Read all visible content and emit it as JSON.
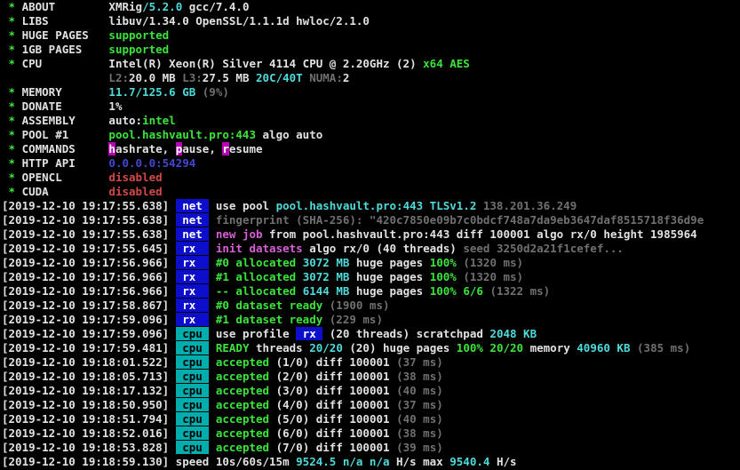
{
  "terminal": {
    "app": "XMRig miner console",
    "colors": {
      "bg": "#000000",
      "white": "#e2e2e2",
      "green": "#3ce43c",
      "cyan": "#4fdbdb",
      "dim": "#707070",
      "red": "#d24848",
      "magenta": "#d65fd6",
      "blue": "#4646d2",
      "hotkey_bg": "#b800b8",
      "tag_blue_bg": "#0d0dcc",
      "tag_cyan_bg": "#00adad"
    },
    "lines": [
      {
        "segments": [
          {
            "t": " * ",
            "s": "g",
            "n": "bullet"
          },
          {
            "t": "ABOUT        ",
            "s": "w",
            "n": "field-label"
          },
          {
            "t": "XMRig",
            "s": "w"
          },
          {
            "t": "/5.2.0",
            "s": "c"
          },
          {
            "t": " gcc/7.4.0",
            "s": "w"
          }
        ]
      },
      {
        "segments": [
          {
            "t": " * ",
            "s": "g",
            "n": "bullet"
          },
          {
            "t": "LIBS         ",
            "s": "w",
            "n": "field-label"
          },
          {
            "t": "libuv/1.34.0 OpenSSL/1.1.1d hwloc/2.1.0",
            "s": "w"
          }
        ]
      },
      {
        "segments": [
          {
            "t": " * ",
            "s": "g",
            "n": "bullet"
          },
          {
            "t": "HUGE PAGES   ",
            "s": "w",
            "n": "field-label"
          },
          {
            "t": "supported",
            "s": "g"
          }
        ]
      },
      {
        "segments": [
          {
            "t": " * ",
            "s": "g",
            "n": "bullet"
          },
          {
            "t": "1GB PAGES    ",
            "s": "w",
            "n": "field-label"
          },
          {
            "t": "supported",
            "s": "g"
          }
        ]
      },
      {
        "segments": [
          {
            "t": " * ",
            "s": "g",
            "n": "bullet"
          },
          {
            "t": "CPU          ",
            "s": "w",
            "n": "field-label"
          },
          {
            "t": "Intel(R) Xeon(R) Silver 4114 CPU @ 2.20GHz (2) ",
            "s": "w"
          },
          {
            "t": "x64 AES",
            "s": "g"
          }
        ]
      },
      {
        "segments": [
          {
            "t": "                ",
            "s": "w"
          },
          {
            "t": "L2:",
            "s": "d"
          },
          {
            "t": "20.0 MB ",
            "s": "w"
          },
          {
            "t": "L3:",
            "s": "d"
          },
          {
            "t": "27.5 MB ",
            "s": "w"
          },
          {
            "t": "20C/40T ",
            "s": "c"
          },
          {
            "t": "NUMA:",
            "s": "d"
          },
          {
            "t": "2",
            "s": "w"
          }
        ]
      },
      {
        "segments": [
          {
            "t": " * ",
            "s": "g",
            "n": "bullet"
          },
          {
            "t": "MEMORY       ",
            "s": "w",
            "n": "field-label"
          },
          {
            "t": "11.7/125.6 GB ",
            "s": "c"
          },
          {
            "t": "(9%)",
            "s": "d"
          }
        ]
      },
      {
        "segments": [
          {
            "t": " * ",
            "s": "g",
            "n": "bullet"
          },
          {
            "t": "DONATE       ",
            "s": "w",
            "n": "field-label"
          },
          {
            "t": "1%",
            "s": "w"
          }
        ]
      },
      {
        "segments": [
          {
            "t": " * ",
            "s": "g",
            "n": "bullet"
          },
          {
            "t": "ASSEMBLY     ",
            "s": "w",
            "n": "field-label"
          },
          {
            "t": "auto:",
            "s": "w"
          },
          {
            "t": "intel",
            "s": "g"
          }
        ]
      },
      {
        "segments": [
          {
            "t": " * ",
            "s": "g",
            "n": "bullet"
          },
          {
            "t": "POOL #1      ",
            "s": "w",
            "n": "field-label"
          },
          {
            "t": "pool.hashvault.pro:443",
            "s": "g"
          },
          {
            "t": " algo auto",
            "s": "w"
          }
        ]
      },
      {
        "segments": [
          {
            "t": " * ",
            "s": "g",
            "n": "bullet"
          },
          {
            "t": "COMMANDS     ",
            "s": "w",
            "n": "field-label"
          },
          {
            "t": "h",
            "s": "hk",
            "n": "hotkey"
          },
          {
            "t": "ashrate, ",
            "s": "w"
          },
          {
            "t": "p",
            "s": "hk",
            "n": "hotkey"
          },
          {
            "t": "ause, ",
            "s": "w"
          },
          {
            "t": "r",
            "s": "hk",
            "n": "hotkey"
          },
          {
            "t": "esume",
            "s": "w"
          }
        ]
      },
      {
        "segments": [
          {
            "t": " * ",
            "s": "g",
            "n": "bullet"
          },
          {
            "t": "HTTP API     ",
            "s": "w",
            "n": "field-label"
          },
          {
            "t": "0.0.0.0:54294",
            "s": "b"
          }
        ]
      },
      {
        "segments": [
          {
            "t": " * ",
            "s": "g",
            "n": "bullet"
          },
          {
            "t": "OPENCL       ",
            "s": "w",
            "n": "field-label"
          },
          {
            "t": "disabled",
            "s": "r"
          }
        ]
      },
      {
        "segments": [
          {
            "t": " * ",
            "s": "g",
            "n": "bullet"
          },
          {
            "t": "CUDA         ",
            "s": "w",
            "n": "field-label"
          },
          {
            "t": "disabled",
            "s": "r"
          }
        ]
      },
      {
        "segments": [
          {
            "t": "[2019-12-10 19:17:55.638] ",
            "s": "w",
            "n": "timestamp"
          },
          {
            "t": " net ",
            "s": "tagblue",
            "n": "net-tag"
          },
          {
            "t": " ",
            "s": "w"
          },
          {
            "t": "use pool ",
            "s": "w"
          },
          {
            "t": "pool.hashvault.pro:443 TLSv1.2 ",
            "s": "c"
          },
          {
            "t": "138.201.36.249",
            "s": "d"
          }
        ]
      },
      {
        "segments": [
          {
            "t": "[2019-12-10 19:17:55.638] ",
            "s": "w",
            "n": "timestamp"
          },
          {
            "t": " net ",
            "s": "tagblue",
            "n": "net-tag"
          },
          {
            "t": " ",
            "s": "w"
          },
          {
            "t": "fingerprint (SHA-256): \"420c7850e09b7c0bdcf748a7da9eb3647daf8515718f36d9e",
            "s": "d"
          }
        ]
      },
      {
        "segments": [
          {
            "t": "[2019-12-10 19:17:55.638] ",
            "s": "w",
            "n": "timestamp"
          },
          {
            "t": " net ",
            "s": "tagblue",
            "n": "net-tag"
          },
          {
            "t": " ",
            "s": "w"
          },
          {
            "t": "new job",
            "s": "m"
          },
          {
            "t": " from pool.hashvault.pro:443 diff 100001 algo rx/0 height 1985964",
            "s": "w"
          }
        ]
      },
      {
        "segments": [
          {
            "t": "[2019-12-10 19:17:55.645] ",
            "s": "w",
            "n": "timestamp"
          },
          {
            "t": " rx  ",
            "s": "tagblue",
            "n": "rx-tag"
          },
          {
            "t": " ",
            "s": "w"
          },
          {
            "t": "init datasets",
            "s": "m"
          },
          {
            "t": " algo rx/0 (40 threads) ",
            "s": "w"
          },
          {
            "t": "seed 3250d2a21f1cefef...",
            "s": "d"
          }
        ]
      },
      {
        "segments": [
          {
            "t": "[2019-12-10 19:17:56.966] ",
            "s": "w",
            "n": "timestamp"
          },
          {
            "t": " rx  ",
            "s": "tagblue",
            "n": "rx-tag"
          },
          {
            "t": " ",
            "s": "w"
          },
          {
            "t": "#0 allocated ",
            "s": "g"
          },
          {
            "t": "3072 MB ",
            "s": "c"
          },
          {
            "t": "huge pages ",
            "s": "w"
          },
          {
            "t": "100% ",
            "s": "g"
          },
          {
            "t": "(1320 ms)",
            "s": "d"
          }
        ]
      },
      {
        "segments": [
          {
            "t": "[2019-12-10 19:17:56.966] ",
            "s": "w",
            "n": "timestamp"
          },
          {
            "t": " rx  ",
            "s": "tagblue",
            "n": "rx-tag"
          },
          {
            "t": " ",
            "s": "w"
          },
          {
            "t": "#1 allocated ",
            "s": "g"
          },
          {
            "t": "3072 MB ",
            "s": "c"
          },
          {
            "t": "huge pages ",
            "s": "w"
          },
          {
            "t": "100% ",
            "s": "g"
          },
          {
            "t": "(1320 ms)",
            "s": "d"
          }
        ]
      },
      {
        "segments": [
          {
            "t": "[2019-12-10 19:17:56.966] ",
            "s": "w",
            "n": "timestamp"
          },
          {
            "t": " rx  ",
            "s": "tagblue",
            "n": "rx-tag"
          },
          {
            "t": " ",
            "s": "w"
          },
          {
            "t": "-- allocated ",
            "s": "g"
          },
          {
            "t": "6144 MB ",
            "s": "c"
          },
          {
            "t": "huge pages ",
            "s": "w"
          },
          {
            "t": "100% 6/6 ",
            "s": "g"
          },
          {
            "t": "(1322 ms)",
            "s": "d"
          }
        ]
      },
      {
        "segments": [
          {
            "t": "[2019-12-10 19:17:58.867] ",
            "s": "w",
            "n": "timestamp"
          },
          {
            "t": " rx  ",
            "s": "tagblue",
            "n": "rx-tag"
          },
          {
            "t": " ",
            "s": "w"
          },
          {
            "t": "#0 dataset ready ",
            "s": "g"
          },
          {
            "t": "(1900 ms)",
            "s": "d"
          }
        ]
      },
      {
        "segments": [
          {
            "t": "[2019-12-10 19:17:59.096] ",
            "s": "w",
            "n": "timestamp"
          },
          {
            "t": " rx  ",
            "s": "tagblue",
            "n": "rx-tag"
          },
          {
            "t": " ",
            "s": "w"
          },
          {
            "t": "#1 dataset ready ",
            "s": "g"
          },
          {
            "t": "(229 ms)",
            "s": "d"
          }
        ]
      },
      {
        "segments": [
          {
            "t": "[2019-12-10 19:17:59.096] ",
            "s": "w",
            "n": "timestamp"
          },
          {
            "t": " cpu ",
            "s": "tagcpu",
            "n": "cpu-tag"
          },
          {
            "t": " ",
            "s": "w"
          },
          {
            "t": "use profile ",
            "s": "w"
          },
          {
            "t": " rx ",
            "s": "tagrxi",
            "n": "rx-profile-tag"
          },
          {
            "t": " (20 threads) scratchpad ",
            "s": "w"
          },
          {
            "t": "2048 KB",
            "s": "c"
          }
        ]
      },
      {
        "segments": [
          {
            "t": "[2019-12-10 19:17:59.481] ",
            "s": "w",
            "n": "timestamp"
          },
          {
            "t": " cpu ",
            "s": "tagcpu",
            "n": "cpu-tag"
          },
          {
            "t": " ",
            "s": "w"
          },
          {
            "t": "READY",
            "s": "g"
          },
          {
            "t": " threads ",
            "s": "w"
          },
          {
            "t": "20/20",
            "s": "c"
          },
          {
            "t": " (20) huge pages ",
            "s": "w"
          },
          {
            "t": "100% 20/20",
            "s": "g"
          },
          {
            "t": " memory ",
            "s": "w"
          },
          {
            "t": "40960 KB ",
            "s": "c"
          },
          {
            "t": "(385 ms)",
            "s": "d"
          }
        ]
      },
      {
        "segments": [
          {
            "t": "[2019-12-10 19:18:01.522] ",
            "s": "w",
            "n": "timestamp"
          },
          {
            "t": " cpu ",
            "s": "tagcpu",
            "n": "cpu-tag"
          },
          {
            "t": " ",
            "s": "w"
          },
          {
            "t": "accepted",
            "s": "g"
          },
          {
            "t": " (1/0) diff 100001 ",
            "s": "w"
          },
          {
            "t": "(37 ms)",
            "s": "d"
          }
        ]
      },
      {
        "segments": [
          {
            "t": "[2019-12-10 19:18:05.713] ",
            "s": "w",
            "n": "timestamp"
          },
          {
            "t": " cpu ",
            "s": "tagcpu",
            "n": "cpu-tag"
          },
          {
            "t": " ",
            "s": "w"
          },
          {
            "t": "accepted",
            "s": "g"
          },
          {
            "t": " (2/0) diff 100001 ",
            "s": "w"
          },
          {
            "t": "(38 ms)",
            "s": "d"
          }
        ]
      },
      {
        "segments": [
          {
            "t": "[2019-12-10 19:18:17.132] ",
            "s": "w",
            "n": "timestamp"
          },
          {
            "t": " cpu ",
            "s": "tagcpu",
            "n": "cpu-tag"
          },
          {
            "t": " ",
            "s": "w"
          },
          {
            "t": "accepted",
            "s": "g"
          },
          {
            "t": " (3/0) diff 100001 ",
            "s": "w"
          },
          {
            "t": "(40 ms)",
            "s": "d"
          }
        ]
      },
      {
        "segments": [
          {
            "t": "[2019-12-10 19:18:50.950] ",
            "s": "w",
            "n": "timestamp"
          },
          {
            "t": " cpu ",
            "s": "tagcpu",
            "n": "cpu-tag"
          },
          {
            "t": " ",
            "s": "w"
          },
          {
            "t": "accepted",
            "s": "g"
          },
          {
            "t": " (4/0) diff 100001 ",
            "s": "w"
          },
          {
            "t": "(37 ms)",
            "s": "d"
          }
        ]
      },
      {
        "segments": [
          {
            "t": "[2019-12-10 19:18:51.794] ",
            "s": "w",
            "n": "timestamp"
          },
          {
            "t": " cpu ",
            "s": "tagcpu",
            "n": "cpu-tag"
          },
          {
            "t": " ",
            "s": "w"
          },
          {
            "t": "accepted",
            "s": "g"
          },
          {
            "t": " (5/0) diff 100001 ",
            "s": "w"
          },
          {
            "t": "(40 ms)",
            "s": "d"
          }
        ]
      },
      {
        "segments": [
          {
            "t": "[2019-12-10 19:18:52.016] ",
            "s": "w",
            "n": "timestamp"
          },
          {
            "t": " cpu ",
            "s": "tagcpu",
            "n": "cpu-tag"
          },
          {
            "t": " ",
            "s": "w"
          },
          {
            "t": "accepted",
            "s": "g"
          },
          {
            "t": " (6/0) diff 100001 ",
            "s": "w"
          },
          {
            "t": "(38 ms)",
            "s": "d"
          }
        ]
      },
      {
        "segments": [
          {
            "t": "[2019-12-10 19:18:53.828] ",
            "s": "w",
            "n": "timestamp"
          },
          {
            "t": " cpu ",
            "s": "tagcpu",
            "n": "cpu-tag"
          },
          {
            "t": " ",
            "s": "w"
          },
          {
            "t": "accepted",
            "s": "g"
          },
          {
            "t": " (7/0) diff 100001 ",
            "s": "w"
          },
          {
            "t": "(39 ms)",
            "s": "d"
          }
        ]
      },
      {
        "segments": [
          {
            "t": "[2019-12-10 19:18:59.130] ",
            "s": "w",
            "n": "timestamp"
          },
          {
            "t": "speed 10s/60s/15m ",
            "s": "w"
          },
          {
            "t": "9524.5 n/a n/a ",
            "s": "c"
          },
          {
            "t": "H/s max ",
            "s": "w"
          },
          {
            "t": "9540.4 ",
            "s": "c"
          },
          {
            "t": "H/s",
            "s": "w"
          }
        ]
      }
    ]
  }
}
